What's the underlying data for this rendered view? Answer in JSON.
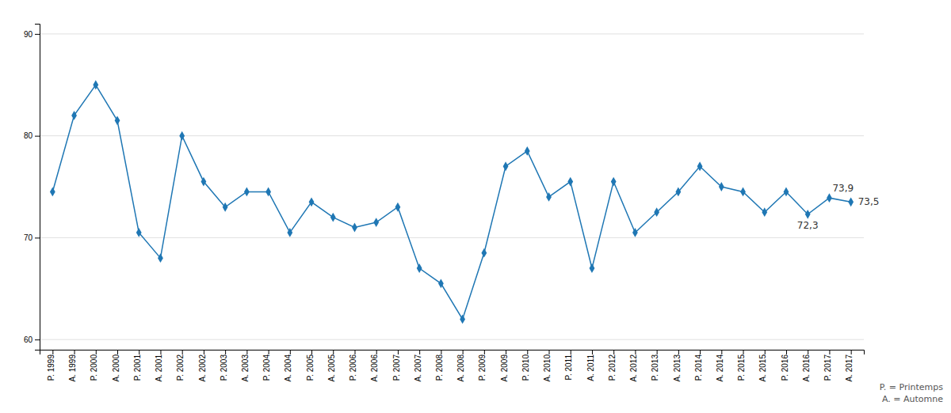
{
  "chart_data": {
    "type": "line",
    "categories": [
      "P. 1999",
      "A. 1999",
      "P. 2000",
      "A. 2000",
      "P. 2001",
      "A. 2001",
      "P. 2002",
      "A. 2002",
      "P. 2003",
      "A. 2003",
      "P. 2004",
      "A. 2004",
      "P. 2005",
      "A. 2005",
      "P. 2006",
      "A. 2006",
      "P. 2007",
      "A. 2007",
      "P. 2008",
      "A. 2008",
      "P. 2009",
      "A. 2009",
      "P. 2010",
      "A. 2010",
      "P. 2011",
      "A. 2011",
      "P. 2012",
      "A. 2012",
      "P. 2013",
      "A. 2013",
      "P. 2014",
      "A. 2014",
      "P. 2015",
      "A. 2015",
      "P. 2016",
      "A. 2016",
      "P. 2017",
      "A. 2017"
    ],
    "values": [
      74.5,
      82.0,
      85.0,
      81.5,
      70.5,
      68.0,
      80.0,
      75.5,
      73.0,
      74.5,
      74.5,
      70.5,
      73.5,
      72.0,
      71.0,
      71.5,
      73.0,
      67.0,
      65.5,
      62.0,
      68.5,
      77.0,
      78.5,
      74.0,
      75.5,
      67.0,
      75.5,
      70.5,
      72.5,
      74.5,
      77.0,
      75.0,
      74.5,
      72.5,
      74.5,
      72.3,
      73.9,
      73.5
    ],
    "value_labels": [
      null,
      null,
      null,
      null,
      null,
      null,
      null,
      null,
      null,
      null,
      null,
      null,
      null,
      null,
      null,
      null,
      null,
      null,
      null,
      null,
      null,
      null,
      null,
      null,
      null,
      null,
      null,
      null,
      null,
      null,
      null,
      null,
      null,
      null,
      null,
      "72,3",
      "73,9",
      "73,5"
    ],
    "marker": "diamond",
    "ylim": [
      59,
      91
    ],
    "yticks": [
      60,
      70,
      80,
      90
    ],
    "grid": true,
    "annotations": [
      "P. = Printemps",
      "A. = Automne"
    ]
  }
}
